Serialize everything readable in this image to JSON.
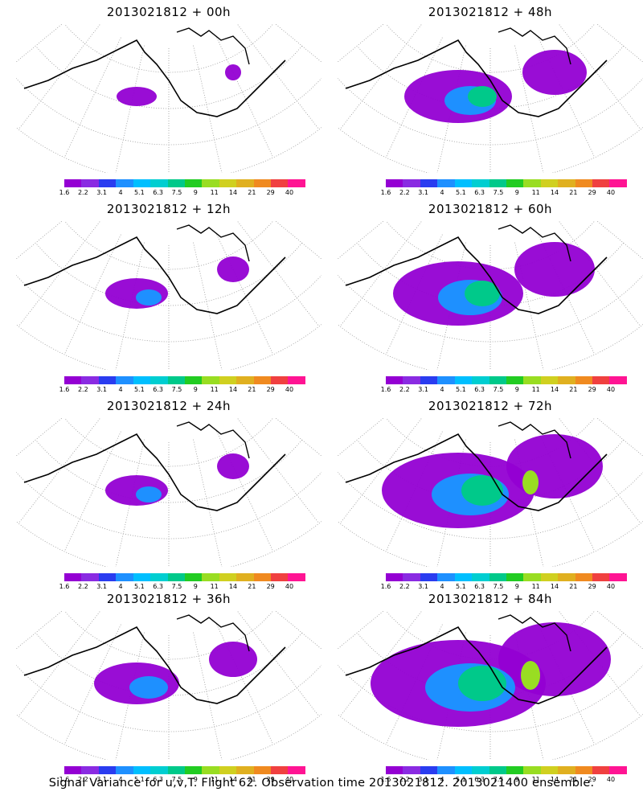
{
  "panels": [
    {
      "title": "2013021812 + 00h",
      "level": 0
    },
    {
      "title": "2013021812 + 48h",
      "level": 3
    },
    {
      "title": "2013021812 + 12h",
      "level": 1
    },
    {
      "title": "2013021812 + 60h",
      "level": 4
    },
    {
      "title": "2013021812 + 24h",
      "level": 1
    },
    {
      "title": "2013021812 + 72h",
      "level": 5
    },
    {
      "title": "2013021812 + 36h",
      "level": 2
    },
    {
      "title": "2013021812 + 84h",
      "level": 6
    }
  ],
  "colorbar": {
    "labels": [
      "1.6",
      "2.2",
      "3.1",
      "4",
      "5.1",
      "6.3",
      "7.5",
      "9",
      "11",
      "14",
      "21",
      "29",
      "40"
    ],
    "colors": [
      "#9400d3",
      "#8a2be2",
      "#2a3cf0",
      "#1e90ff",
      "#00bfff",
      "#00ced1",
      "#00c98a",
      "#22cc22",
      "#99dd22",
      "#d0d020",
      "#e0b020",
      "#f08a20",
      "#f04040",
      "#ff1493"
    ]
  },
  "caption": "Signal Variance for u,v,T. Flight 62. Observation time 2013021812. 2013021400 ensemble."
}
